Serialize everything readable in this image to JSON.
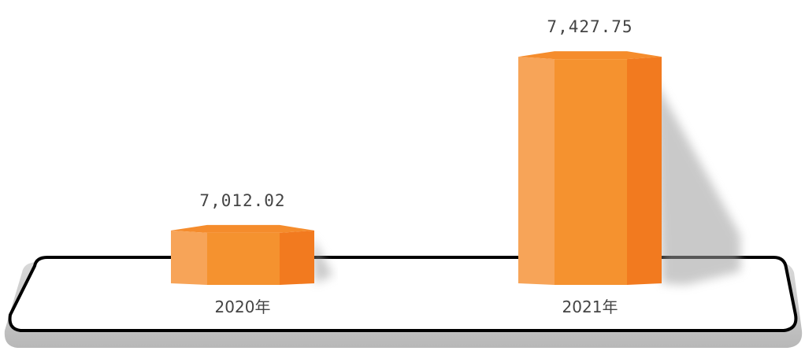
{
  "chart_data": {
    "type": "bar",
    "categories": [
      "2020年",
      "2021年"
    ],
    "values": [
      7012.02,
      7427.75
    ],
    "value_labels": [
      "7,012.02",
      "7,427.75"
    ],
    "ylim": [
      6880,
      7460
    ],
    "grid": false,
    "legend": "none",
    "style": "3d hexagonal prism bars on a platform"
  },
  "colors": {
    "bar_left": "#f7a458",
    "bar_front": "#f5922f",
    "bar_right": "#f27a1f",
    "bar_top": "#f58c2c",
    "platform_stroke": "#000000",
    "platform_shadow": "#bdbdbd",
    "text": "#444444"
  }
}
